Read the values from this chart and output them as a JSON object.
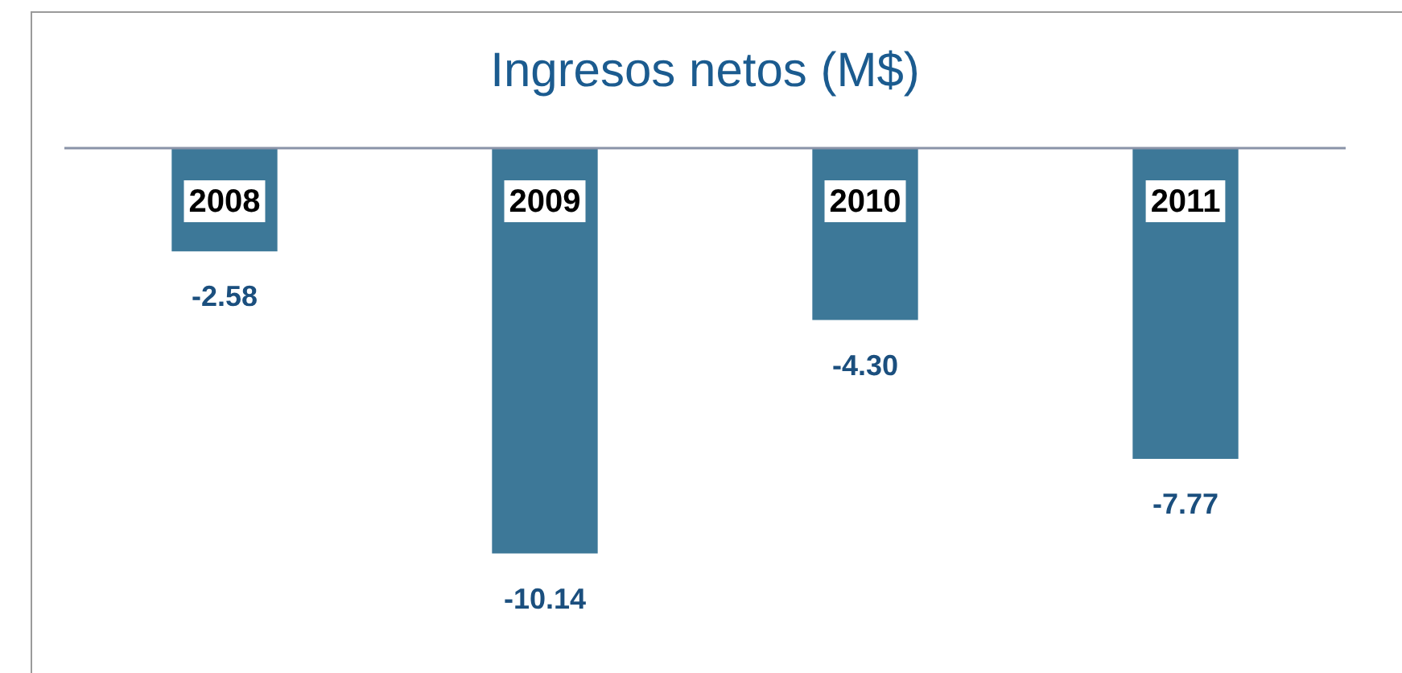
{
  "chart_data": {
    "type": "bar",
    "title": "Ingresos netos (M$)",
    "categories": [
      "2008",
      "2009",
      "2010",
      "2011"
    ],
    "values": [
      -2.58,
      -10.14,
      -4.3,
      -7.77
    ],
    "value_labels": [
      "-2.58",
      "-10.14",
      "-4.30",
      "-7.77"
    ],
    "color": "#3d7898",
    "tick_labels": "x"
  }
}
